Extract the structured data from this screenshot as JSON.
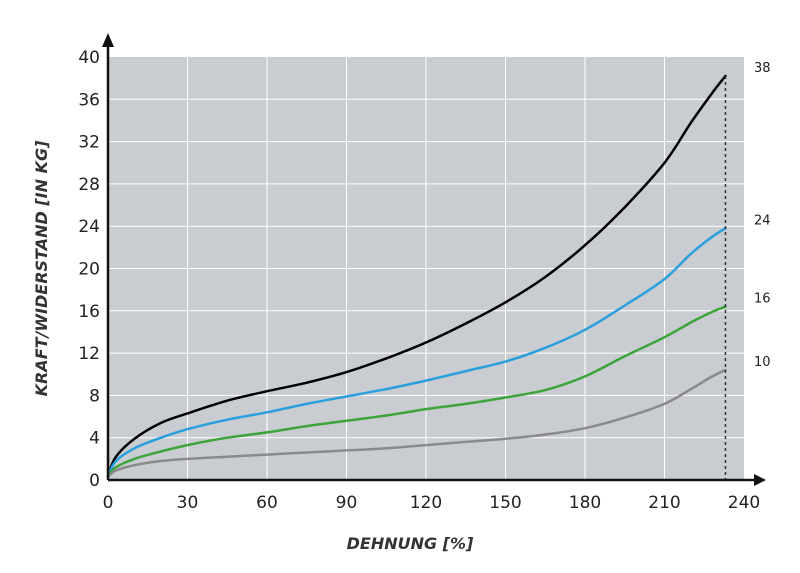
{
  "colors": {
    "plot_background": "#c9ccd0",
    "grid": "#ffffff",
    "axis": "#111111"
  },
  "chart_data": {
    "type": "line",
    "title": "",
    "xlabel": "DEHNUNG [%]",
    "ylabel": "KRAFT/WIDERSTAND [IN KG]",
    "xlim": [
      0,
      240
    ],
    "ylim": [
      0,
      40
    ],
    "x_ticks": [
      0,
      30,
      60,
      90,
      120,
      150,
      180,
      210,
      240
    ],
    "y_ticks": [
      0,
      4,
      8,
      12,
      16,
      20,
      24,
      28,
      32,
      36,
      40
    ],
    "grid": true,
    "legend": "none",
    "end_marker": {
      "x": 233,
      "style": "dotted vertical line"
    },
    "series": [
      {
        "color": "#000000",
        "end_label": "38",
        "points": [
          [
            0,
            0.4
          ],
          [
            3,
            2.2
          ],
          [
            10,
            3.9
          ],
          [
            20,
            5.4
          ],
          [
            30,
            6.3
          ],
          [
            45,
            7.5
          ],
          [
            60,
            8.4
          ],
          [
            75,
            9.2
          ],
          [
            90,
            10.2
          ],
          [
            105,
            11.5
          ],
          [
            120,
            13.0
          ],
          [
            135,
            14.8
          ],
          [
            150,
            16.8
          ],
          [
            165,
            19.2
          ],
          [
            180,
            22.2
          ],
          [
            195,
            25.8
          ],
          [
            210,
            30.0
          ],
          [
            220,
            33.8
          ],
          [
            228,
            36.6
          ],
          [
            233,
            38.2
          ]
        ]
      },
      {
        "color": "#2a9fde",
        "end_label": "24",
        "points": [
          [
            0,
            0.4
          ],
          [
            3,
            1.8
          ],
          [
            10,
            3.0
          ],
          [
            20,
            4.0
          ],
          [
            30,
            4.8
          ],
          [
            45,
            5.7
          ],
          [
            60,
            6.4
          ],
          [
            75,
            7.2
          ],
          [
            90,
            7.9
          ],
          [
            105,
            8.6
          ],
          [
            120,
            9.4
          ],
          [
            135,
            10.3
          ],
          [
            150,
            11.2
          ],
          [
            165,
            12.5
          ],
          [
            180,
            14.2
          ],
          [
            195,
            16.5
          ],
          [
            210,
            19.0
          ],
          [
            220,
            21.4
          ],
          [
            228,
            23.0
          ],
          [
            233,
            23.8
          ]
        ]
      },
      {
        "color": "#3da43a",
        "end_label": "16",
        "points": [
          [
            0,
            0.4
          ],
          [
            3,
            1.2
          ],
          [
            10,
            2.0
          ],
          [
            20,
            2.7
          ],
          [
            30,
            3.3
          ],
          [
            45,
            4.0
          ],
          [
            60,
            4.5
          ],
          [
            75,
            5.1
          ],
          [
            90,
            5.6
          ],
          [
            105,
            6.1
          ],
          [
            120,
            6.7
          ],
          [
            135,
            7.2
          ],
          [
            150,
            7.8
          ],
          [
            165,
            8.5
          ],
          [
            180,
            9.8
          ],
          [
            195,
            11.7
          ],
          [
            210,
            13.5
          ],
          [
            220,
            14.9
          ],
          [
            228,
            15.9
          ],
          [
            233,
            16.4
          ]
        ]
      },
      {
        "color": "#8a8a8a",
        "end_label": "10",
        "points": [
          [
            0,
            0.3
          ],
          [
            3,
            0.9
          ],
          [
            10,
            1.4
          ],
          [
            20,
            1.8
          ],
          [
            30,
            2.0
          ],
          [
            45,
            2.2
          ],
          [
            60,
            2.4
          ],
          [
            75,
            2.6
          ],
          [
            90,
            2.8
          ],
          [
            105,
            3.0
          ],
          [
            120,
            3.3
          ],
          [
            135,
            3.6
          ],
          [
            150,
            3.9
          ],
          [
            165,
            4.3
          ],
          [
            180,
            4.9
          ],
          [
            195,
            5.9
          ],
          [
            210,
            7.2
          ],
          [
            220,
            8.6
          ],
          [
            228,
            9.8
          ],
          [
            233,
            10.4
          ]
        ]
      }
    ]
  }
}
